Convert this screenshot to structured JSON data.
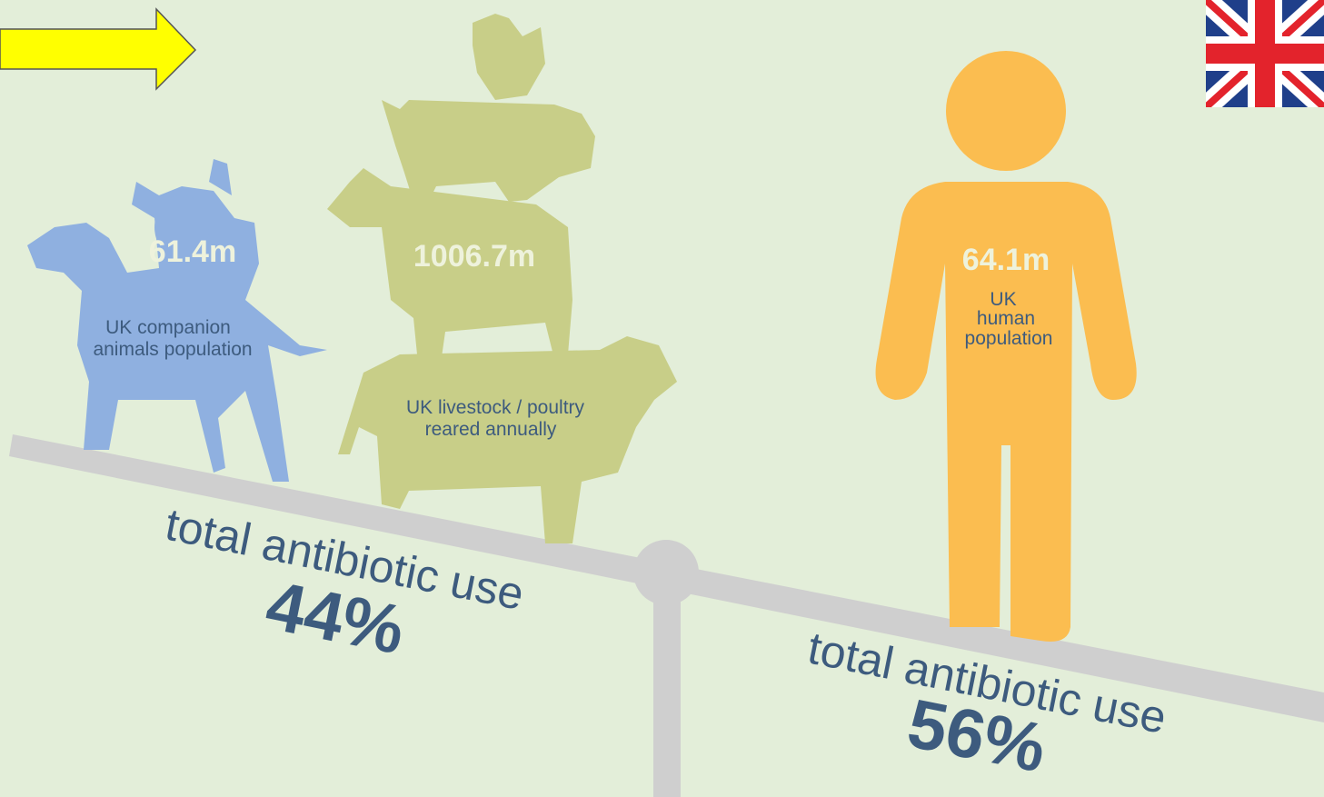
{
  "companion": {
    "value": "61.4m",
    "label_lines": [
      "UK companion",
      "animals population"
    ]
  },
  "livestock": {
    "value": "1006.7m",
    "label_lines": [
      "UK livestock / poultry",
      "reared annually"
    ]
  },
  "human": {
    "value": "64.1m",
    "label_lines": [
      "UK",
      "human",
      "population"
    ]
  },
  "scale_left": {
    "label": "total antibiotic use",
    "percent": "44%"
  },
  "scale_right": {
    "label": "total antibiotic use",
    "percent": "56%"
  }
}
